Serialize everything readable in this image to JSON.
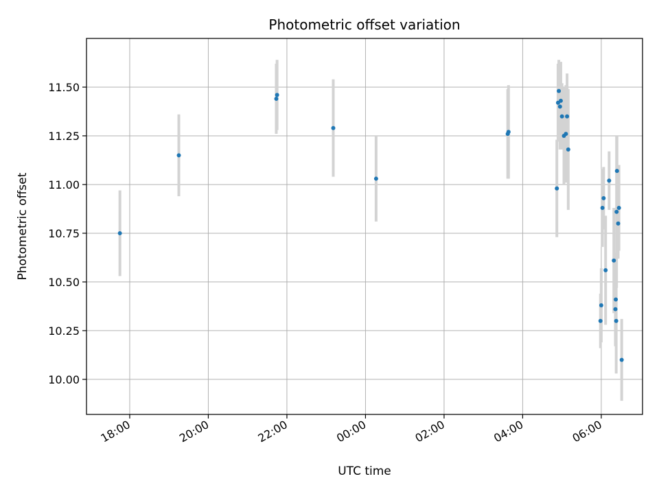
{
  "chart_data": {
    "type": "scatter",
    "title": "Photometric offset variation",
    "xlabel": "UTC time",
    "ylabel": "Photometric offset",
    "x_unit": "UTC hours (values above 24 fall on the following day)",
    "xlim": [
      16.9,
      31.05
    ],
    "ylim": [
      9.82,
      11.75
    ],
    "grid": true,
    "x_ticks": [
      {
        "value": 18,
        "label": "18:00"
      },
      {
        "value": 20,
        "label": "20:00"
      },
      {
        "value": 22,
        "label": "22:00"
      },
      {
        "value": 24,
        "label": "00:00"
      },
      {
        "value": 26,
        "label": "02:00"
      },
      {
        "value": 28,
        "label": "04:00"
      },
      {
        "value": 30,
        "label": "06:00"
      }
    ],
    "y_ticks": [
      {
        "value": 10.0,
        "label": "10.00"
      },
      {
        "value": 10.25,
        "label": "10.25"
      },
      {
        "value": 10.5,
        "label": "10.50"
      },
      {
        "value": 10.75,
        "label": "10.75"
      },
      {
        "value": 11.0,
        "label": "11.00"
      },
      {
        "value": 11.25,
        "label": "11.25"
      },
      {
        "value": 11.5,
        "label": "11.50"
      }
    ],
    "colors": {
      "point": "#1f77b4",
      "errorbar": "#d3d3d3",
      "grid": "#b0b0b0"
    },
    "points": [
      {
        "x": 17.75,
        "y": 10.75,
        "err": 0.22
      },
      {
        "x": 19.25,
        "y": 11.15,
        "err": 0.21
      },
      {
        "x": 21.73,
        "y": 11.44,
        "err": 0.18
      },
      {
        "x": 21.75,
        "y": 11.46,
        "err": 0.18
      },
      {
        "x": 23.18,
        "y": 11.29,
        "err": 0.25
      },
      {
        "x": 24.27,
        "y": 11.03,
        "err": 0.22
      },
      {
        "x": 27.62,
        "y": 11.26,
        "err": 0.23
      },
      {
        "x": 27.64,
        "y": 11.27,
        "err": 0.24
      },
      {
        "x": 28.87,
        "y": 10.98,
        "err": 0.25
      },
      {
        "x": 28.9,
        "y": 11.42,
        "err": 0.2
      },
      {
        "x": 28.92,
        "y": 11.48,
        "err": 0.16
      },
      {
        "x": 28.95,
        "y": 11.4,
        "err": 0.22
      },
      {
        "x": 28.97,
        "y": 11.43,
        "err": 0.2
      },
      {
        "x": 29.0,
        "y": 11.35,
        "err": 0.17
      },
      {
        "x": 29.05,
        "y": 11.25,
        "err": 0.25
      },
      {
        "x": 29.1,
        "y": 11.26,
        "err": 0.25
      },
      {
        "x": 29.13,
        "y": 11.35,
        "err": 0.22
      },
      {
        "x": 29.16,
        "y": 11.18,
        "err": 0.31
      },
      {
        "x": 29.98,
        "y": 10.3,
        "err": 0.14
      },
      {
        "x": 30.0,
        "y": 10.38,
        "err": 0.19
      },
      {
        "x": 30.03,
        "y": 10.88,
        "err": 0.2
      },
      {
        "x": 30.06,
        "y": 10.93,
        "err": 0.16
      },
      {
        "x": 30.11,
        "y": 10.56,
        "err": 0.28
      },
      {
        "x": 30.2,
        "y": 11.02,
        "err": 0.15
      },
      {
        "x": 30.32,
        "y": 10.61,
        "err": 0.27
      },
      {
        "x": 30.36,
        "y": 10.36,
        "err": 0.19
      },
      {
        "x": 30.37,
        "y": 10.41,
        "err": 0.24
      },
      {
        "x": 30.38,
        "y": 10.3,
        "err": 0.27
      },
      {
        "x": 30.39,
        "y": 10.86,
        "err": 0.39
      },
      {
        "x": 30.4,
        "y": 11.07,
        "err": 0.18
      },
      {
        "x": 30.43,
        "y": 10.8,
        "err": 0.18
      },
      {
        "x": 30.45,
        "y": 10.88,
        "err": 0.22
      },
      {
        "x": 30.52,
        "y": 10.1,
        "err": 0.21
      }
    ]
  }
}
